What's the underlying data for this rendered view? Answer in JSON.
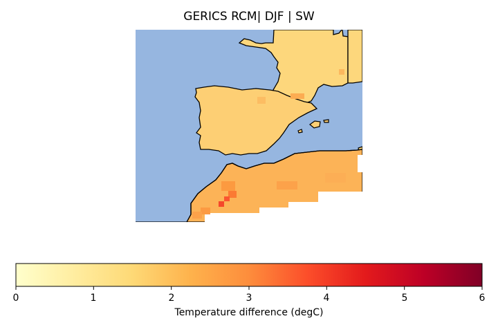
{
  "title": "GERICS RCM| DJF | SW",
  "colorbar": {
    "label": "Temperature difference (degC)",
    "ticks": [
      "0",
      "1",
      "2",
      "3",
      "4",
      "5",
      "6"
    ],
    "min": 0,
    "max": 6,
    "colormap": "YlOrRd"
  },
  "colors": {
    "sea": "#96b6e0",
    "coast": "#000000",
    "land_base": "#fdd57a",
    "land_warm": "#fca64a"
  },
  "regions": [
    "Iberian Peninsula",
    "South-western France",
    "North-western Africa",
    "Western Mediterranean Sea"
  ]
}
